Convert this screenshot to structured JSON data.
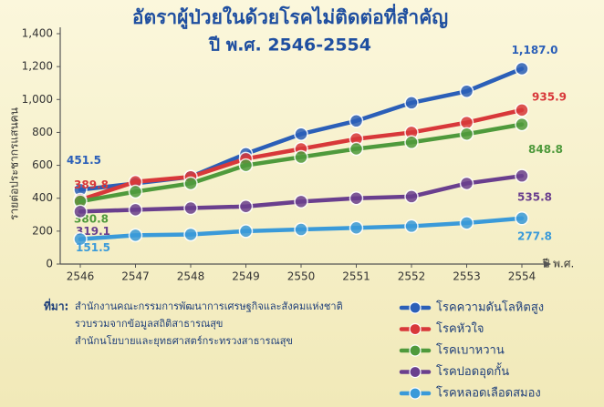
{
  "chart_data": {
    "type": "line",
    "title": "อัตราผู้ป่วยในด้วยโรคไม่ติดต่อที่สำคัญ",
    "subtitle": "ปี พ.ศ. 2546-2554",
    "y_label": "รายต่อประชากรแสนคน",
    "x_label": "ปี พ.ศ.",
    "categories": [
      "2546",
      "2547",
      "2548",
      "2549",
      "2550",
      "2551",
      "2552",
      "2553",
      "2554"
    ],
    "ylim": [
      0,
      1400
    ],
    "yticks": [
      0,
      200,
      400,
      600,
      800,
      {
        "value": 1000,
        "label": "1,000"
      },
      {
        "value": 1200,
        "label": "1,200"
      },
      {
        "value": 1400,
        "label": "1,400"
      }
    ],
    "grid": false,
    "legend": "bottom-right",
    "series": [
      {
        "name": "โรคความดันโลหิตสูง",
        "color": "#2b5fb8",
        "values": [
          451.5,
          490,
          530,
          670,
          790,
          870,
          980,
          1050,
          1187.0
        ],
        "value_labels": [
          "451.5",
          null,
          null,
          null,
          null,
          null,
          null,
          null,
          "1,187.0"
        ]
      },
      {
        "name": "โรคหัวใจ",
        "color": "#d8383a",
        "values": [
          389.8,
          500,
          530,
          640,
          700,
          760,
          800,
          860,
          935.9
        ],
        "value_labels": [
          "389.8",
          null,
          null,
          null,
          null,
          null,
          null,
          null,
          "935.9"
        ]
      },
      {
        "name": "โรคเบาหวาน",
        "color": "#4f9a3c",
        "values": [
          380.8,
          440,
          490,
          600,
          650,
          700,
          740,
          790,
          848.8
        ],
        "value_labels": [
          "380.8",
          null,
          null,
          null,
          null,
          null,
          null,
          null,
          "848.8"
        ]
      },
      {
        "name": "โรคปอดอุดกั้น",
        "color": "#6a3f8e",
        "values": [
          319.1,
          330,
          340,
          350,
          380,
          400,
          410,
          490,
          535.8
        ],
        "value_labels": [
          "319.1",
          null,
          null,
          null,
          null,
          null,
          null,
          null,
          "535.8"
        ]
      },
      {
        "name": "โรคหลอดเลือดสมอง",
        "color": "#3a9ad9",
        "values": [
          151.5,
          175,
          180,
          200,
          210,
          220,
          230,
          250,
          277.8
        ],
        "value_labels": [
          "151.5",
          null,
          null,
          null,
          null,
          null,
          null,
          null,
          "277.8"
        ]
      }
    ],
    "source_label": "ที่มา:",
    "source_lines": [
      "สำนักงานคณะกรรมการพัฒนาการเศรษฐกิจและสังคมแห่งชาติ",
      "รวบรวมจากข้อมูลสถิติสาธารณสุข",
      "สำนักนโยบายและยุทธศาสตร์กระทรวงสาธารณสุข"
    ]
  }
}
